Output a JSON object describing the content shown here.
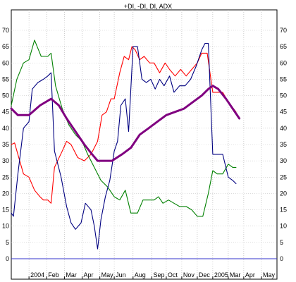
{
  "chart_data": {
    "type": "line",
    "title": "+DI, -DI, DI, ADX",
    "xlabel": "",
    "ylabel": "",
    "ylim": [
      -5,
      75
    ],
    "y_ticks": [
      0,
      5,
      10,
      15,
      20,
      25,
      30,
      35,
      40,
      45,
      50,
      55,
      60,
      65,
      70
    ],
    "x_range": [
      0,
      24
    ],
    "x_ticks": [
      {
        "x": 1.6,
        "label": "2004"
      },
      {
        "x": 3.2,
        "label": "Feb"
      },
      {
        "x": 4.8,
        "label": "Mar"
      },
      {
        "x": 6.4,
        "label": "Apr"
      },
      {
        "x": 8.0,
        "label": "May"
      },
      {
        "x": 9.3,
        "label": "Jun"
      },
      {
        "x": 11.0,
        "label": "Aug"
      },
      {
        "x": 12.7,
        "label": "Sep"
      },
      {
        "x": 14.0,
        "label": "Oct"
      },
      {
        "x": 15.4,
        "label": "Nov"
      },
      {
        "x": 16.8,
        "label": "Dec"
      },
      {
        "x": 18.2,
        "label": "2005"
      },
      {
        "x": 19.6,
        "label": "Mar"
      },
      {
        "x": 21.0,
        "label": "Apr"
      },
      {
        "x": 22.6,
        "label": "May"
      }
    ],
    "zero_line": 0,
    "grid": "dotted-vertical",
    "series": [
      {
        "color": "#ff0000",
        "points": [
          [
            0,
            35
          ],
          [
            0.3,
            35.5
          ],
          [
            1.1,
            26
          ],
          [
            1.6,
            25
          ],
          [
            2.1,
            21
          ],
          [
            2.6,
            19
          ],
          [
            2.9,
            18
          ],
          [
            3.3,
            18
          ],
          [
            3.6,
            17
          ],
          [
            3.9,
            28
          ],
          [
            4.6,
            33
          ],
          [
            5.0,
            36
          ],
          [
            5.4,
            35
          ],
          [
            6.0,
            31
          ],
          [
            6.6,
            30
          ],
          [
            7.2,
            32
          ],
          [
            7.8,
            36
          ],
          [
            8.2,
            44
          ],
          [
            8.6,
            45
          ],
          [
            9.0,
            49
          ],
          [
            9.3,
            49
          ],
          [
            9.8,
            57
          ],
          [
            10.2,
            62
          ],
          [
            10.6,
            61
          ],
          [
            10.9,
            65
          ],
          [
            11.2,
            64
          ],
          [
            11.6,
            61
          ],
          [
            12.0,
            62
          ],
          [
            12.5,
            60
          ],
          [
            12.9,
            60
          ],
          [
            13.4,
            57
          ],
          [
            13.9,
            60
          ],
          [
            14.3,
            58
          ],
          [
            14.8,
            56
          ],
          [
            15.3,
            58
          ],
          [
            15.8,
            56
          ],
          [
            16.3,
            58
          ],
          [
            16.8,
            60
          ],
          [
            17.2,
            63
          ],
          [
            17.7,
            63
          ],
          [
            18.2,
            51
          ],
          [
            18.6,
            51
          ],
          [
            19.1,
            51
          ],
          [
            19.6,
            48
          ],
          [
            20.3,
            45
          ]
        ]
      },
      {
        "color": "#008000",
        "points": [
          [
            0,
            47
          ],
          [
            0.5,
            55
          ],
          [
            1.1,
            60
          ],
          [
            1.6,
            61
          ],
          [
            2.1,
            67
          ],
          [
            2.7,
            62
          ],
          [
            3.3,
            62
          ],
          [
            3.6,
            63
          ],
          [
            4.0,
            53
          ],
          [
            4.6,
            46
          ],
          [
            5.2,
            41
          ],
          [
            5.8,
            38
          ],
          [
            6.4,
            36
          ],
          [
            6.9,
            32
          ],
          [
            7.5,
            28
          ],
          [
            8.1,
            24
          ],
          [
            8.7,
            22
          ],
          [
            9.3,
            19
          ],
          [
            9.8,
            18
          ],
          [
            10.3,
            21
          ],
          [
            10.8,
            14
          ],
          [
            11.4,
            14
          ],
          [
            11.9,
            18
          ],
          [
            12.4,
            18
          ],
          [
            12.9,
            18
          ],
          [
            13.3,
            19
          ],
          [
            13.7,
            17
          ],
          [
            14.2,
            18
          ],
          [
            14.7,
            17
          ],
          [
            15.2,
            16
          ],
          [
            15.8,
            16
          ],
          [
            16.3,
            15
          ],
          [
            16.8,
            13
          ],
          [
            17.3,
            13
          ],
          [
            17.8,
            20
          ],
          [
            18.2,
            27
          ],
          [
            18.6,
            26
          ],
          [
            19.1,
            26
          ],
          [
            19.6,
            29
          ],
          [
            20.0,
            28
          ],
          [
            20.3,
            28
          ]
        ]
      },
      {
        "color": "#000080",
        "points": [
          [
            0,
            14
          ],
          [
            0.2,
            13
          ],
          [
            0.6,
            26
          ],
          [
            1.1,
            40
          ],
          [
            1.6,
            42
          ],
          [
            1.9,
            52
          ],
          [
            2.4,
            54
          ],
          [
            2.9,
            55
          ],
          [
            3.3,
            56
          ],
          [
            3.6,
            57
          ],
          [
            3.9,
            33
          ],
          [
            4.5,
            25
          ],
          [
            5.0,
            16
          ],
          [
            5.4,
            11
          ],
          [
            5.8,
            9
          ],
          [
            6.3,
            11
          ],
          [
            6.7,
            17
          ],
          [
            7.2,
            15
          ],
          [
            7.5,
            10
          ],
          [
            7.8,
            3
          ],
          [
            8.1,
            12
          ],
          [
            8.5,
            19
          ],
          [
            8.9,
            24
          ],
          [
            9.3,
            33
          ],
          [
            9.6,
            36
          ],
          [
            9.9,
            47
          ],
          [
            10.3,
            49
          ],
          [
            10.6,
            39
          ],
          [
            11.0,
            65
          ],
          [
            11.4,
            65
          ],
          [
            11.8,
            55
          ],
          [
            12.2,
            54
          ],
          [
            12.6,
            55
          ],
          [
            13.0,
            52
          ],
          [
            13.4,
            55
          ],
          [
            13.8,
            53
          ],
          [
            14.3,
            56
          ],
          [
            14.7,
            51
          ],
          [
            15.2,
            53
          ],
          [
            15.7,
            53
          ],
          [
            16.2,
            55
          ],
          [
            16.7,
            59
          ],
          [
            17.2,
            64
          ],
          [
            17.5,
            66
          ],
          [
            17.8,
            66
          ],
          [
            18.2,
            32
          ],
          [
            18.6,
            32
          ],
          [
            19.1,
            32
          ],
          [
            19.6,
            25
          ],
          [
            20.0,
            24
          ],
          [
            20.3,
            23
          ]
        ]
      },
      {
        "color": "#800080",
        "points": [
          [
            0,
            46
          ],
          [
            0.6,
            44
          ],
          [
            1.6,
            44
          ],
          [
            2.6,
            47
          ],
          [
            3.6,
            49
          ],
          [
            4.3,
            47
          ],
          [
            5.0,
            43
          ],
          [
            5.8,
            39
          ],
          [
            6.6,
            35
          ],
          [
            7.3,
            32
          ],
          [
            7.8,
            30
          ],
          [
            8.6,
            30
          ],
          [
            9.1,
            30
          ],
          [
            10.0,
            32
          ],
          [
            10.8,
            34
          ],
          [
            11.6,
            38
          ],
          [
            12.4,
            40
          ],
          [
            13.2,
            42
          ],
          [
            14.0,
            44
          ],
          [
            14.8,
            45
          ],
          [
            15.6,
            46
          ],
          [
            16.4,
            48
          ],
          [
            17.2,
            50
          ],
          [
            17.8,
            52
          ],
          [
            18.2,
            53
          ],
          [
            18.7,
            52
          ],
          [
            19.4,
            49
          ],
          [
            20.0,
            46
          ],
          [
            20.6,
            43
          ]
        ]
      }
    ]
  }
}
